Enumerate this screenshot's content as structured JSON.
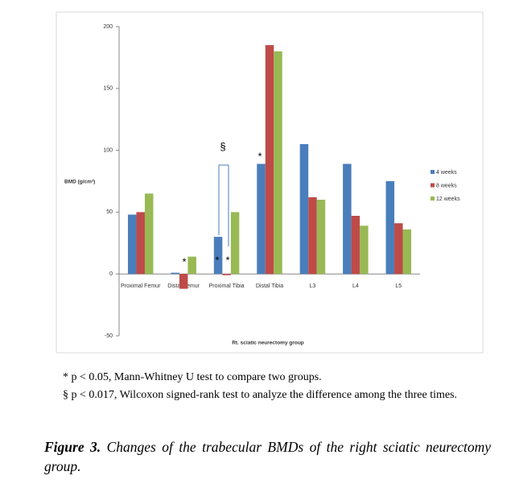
{
  "chart_data": {
    "type": "bar",
    "y_label": "BMD (g/cm²)",
    "x_label": "Rt. sciatic neurectomy group",
    "categories": [
      "Proximal Femur",
      "Distal Femur",
      "Proximal Tibia",
      "Distal Tibia",
      "L3",
      "L4",
      "L5"
    ],
    "series": [
      {
        "name": "4 weeks",
        "color": "#4a7ebb",
        "values": [
          48,
          1,
          30,
          89,
          105,
          89,
          75
        ]
      },
      {
        "name": "8 weeks",
        "color": "#be4b48",
        "values": [
          50,
          -12,
          -1,
          185,
          62,
          47,
          41
        ]
      },
      {
        "name": "12 weeks",
        "color": "#98b954",
        "values": [
          65,
          14,
          50,
          180,
          60,
          39,
          36
        ]
      }
    ],
    "ylim": [
      -50,
      200
    ],
    "yticks": [
      -50,
      0,
      50,
      100,
      150,
      200
    ],
    "legend": "right",
    "annotations": [
      "*",
      "*",
      "*",
      "*",
      "§"
    ]
  },
  "notes": [
    "* p < 0.05, Mann-Whitney U test to compare two groups.",
    "§ p < 0.017, Wilcoxon signed-rank test to analyze the difference among the three times."
  ],
  "caption": {
    "label": "Figure 3.",
    "text": "Changes of the trabecular BMDs of the right sciatic neurectomy group."
  }
}
